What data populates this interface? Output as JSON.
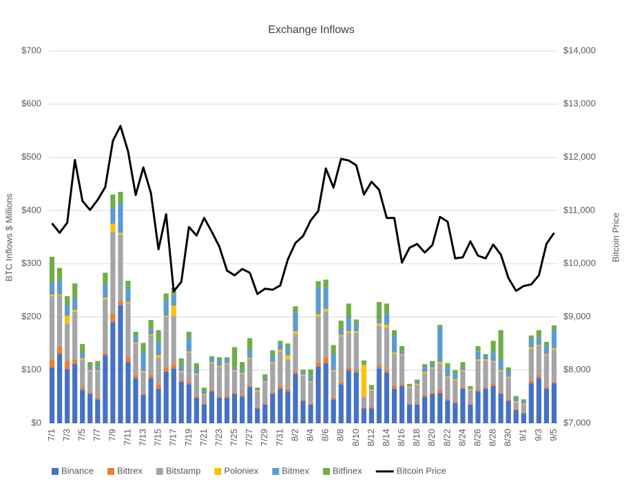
{
  "chart_data": {
    "type": "bar",
    "stacked": true,
    "title": "Exchange Inflows",
    "y_label": "BTC Inflows $ Millions",
    "y2_label": "Bitcoin Price",
    "categories": [
      "7/1",
      null,
      "7/3",
      null,
      "7/5",
      null,
      "7/7",
      null,
      "7/9",
      null,
      "7/11",
      null,
      "7/13",
      null,
      "7/15",
      null,
      "7/17",
      null,
      "7/19",
      null,
      "7/21",
      null,
      "7/23",
      null,
      "7/25",
      null,
      "7/27",
      null,
      "7/29",
      null,
      "7/31",
      null,
      "8/2",
      null,
      "8/4",
      null,
      "8/6",
      null,
      "8/8",
      null,
      "8/10",
      null,
      "8/12",
      null,
      "8/14",
      null,
      "8/16",
      null,
      "8/18",
      null,
      "8/20",
      null,
      "8/22",
      null,
      "8/24",
      null,
      "8/26",
      null,
      "8/28",
      null,
      "8/30",
      null,
      "9/1",
      null,
      "9/3",
      null,
      "9/5"
    ],
    "series": [
      {
        "name": "Binance",
        "color": "#4472c4",
        "values": [
          105,
          130,
          102,
          112,
          63,
          55,
          45,
          128,
          190,
          222,
          115,
          85,
          53,
          85,
          65,
          97,
          103,
          78,
          73,
          48,
          35,
          60,
          48,
          48,
          55,
          50,
          68,
          28,
          35,
          55,
          65,
          60,
          93,
          42,
          35,
          107,
          113,
          45,
          73,
          100,
          95,
          28,
          28,
          103,
          95,
          65,
          70,
          35,
          35,
          50,
          55,
          57,
          43,
          38,
          65,
          35,
          60,
          65,
          70,
          55,
          42,
          25,
          18,
          75,
          85,
          65,
          75
        ]
      },
      {
        "name": "Bittrex",
        "color": "#ed7d31",
        "values": [
          14,
          15,
          15,
          8,
          5,
          3,
          3,
          5,
          15,
          8,
          10,
          5,
          3,
          5,
          8,
          8,
          8,
          3,
          5,
          3,
          3,
          3,
          3,
          3,
          3,
          3,
          3,
          2,
          2,
          3,
          5,
          5,
          5,
          2,
          2,
          8,
          12,
          3,
          5,
          5,
          5,
          2,
          3,
          5,
          5,
          5,
          3,
          2,
          2,
          3,
          3,
          5,
          3,
          3,
          3,
          2,
          3,
          3,
          5,
          3,
          3,
          2,
          2,
          5,
          5,
          3,
          3
        ]
      },
      {
        "name": "Bitstamp",
        "color": "#a5a5a5",
        "values": [
          120,
          95,
          70,
          90,
          52,
          40,
          50,
          100,
          155,
          125,
          100,
          60,
          40,
          75,
          50,
          95,
          90,
          15,
          55,
          40,
          15,
          50,
          55,
          60,
          40,
          40,
          50,
          30,
          40,
          55,
          65,
          55,
          70,
          45,
          40,
          85,
          85,
          50,
          85,
          65,
          70,
          20,
          30,
          75,
          80,
          60,
          55,
          30,
          35,
          40,
          45,
          50,
          40,
          40,
          30,
          25,
          55,
          50,
          40,
          40,
          40,
          12,
          15,
          60,
          55,
          60,
          60
        ]
      },
      {
        "name": "Poloniex",
        "color": "#ffc000",
        "values": [
          3,
          2,
          15,
          3,
          2,
          2,
          2,
          3,
          15,
          3,
          3,
          2,
          2,
          2,
          5,
          2,
          20,
          2,
          2,
          2,
          2,
          2,
          2,
          2,
          2,
          2,
          2,
          2,
          2,
          2,
          3,
          8,
          5,
          2,
          2,
          5,
          5,
          2,
          3,
          3,
          3,
          60,
          2,
          5,
          5,
          3,
          2,
          2,
          2,
          3,
          2,
          3,
          2,
          2,
          2,
          2,
          2,
          2,
          2,
          2,
          2,
          2,
          2,
          3,
          2,
          2,
          3
        ]
      },
      {
        "name": "Bitmex",
        "color": "#5b9bd5",
        "values": [
          20,
          25,
          20,
          20,
          10,
          5,
          7,
          25,
          30,
          55,
          25,
          10,
          35,
          10,
          25,
          30,
          20,
          10,
          25,
          8,
          5,
          8,
          10,
          8,
          5,
          5,
          15,
          2,
          5,
          10,
          10,
          12,
          35,
          5,
          10,
          50,
          40,
          30,
          10,
          25,
          15,
          2,
          2,
          5,
          20,
          30,
          5,
          2,
          3,
          10,
          5,
          65,
          15,
          10,
          5,
          3,
          15,
          5,
          15,
          20,
          10,
          5,
          5,
          15,
          15,
          15,
          35
        ]
      },
      {
        "name": "Bitfinex",
        "color": "#70ad47",
        "values": [
          51,
          25,
          17,
          30,
          17,
          10,
          10,
          22,
          25,
          22,
          15,
          10,
          18,
          17,
          22,
          12,
          14,
          14,
          12,
          12,
          7,
          3,
          6,
          3,
          38,
          15,
          22,
          3,
          8,
          12,
          7,
          10,
          12,
          5,
          12,
          12,
          15,
          17,
          17,
          27,
          7,
          6,
          7,
          35,
          20,
          12,
          10,
          3,
          5,
          5,
          7,
          5,
          10,
          7,
          10,
          3,
          10,
          5,
          23,
          55,
          8,
          5,
          3,
          7,
          13,
          8,
          8
        ]
      },
      {
        "name": "Bitcoin Price",
        "color": "#000000",
        "type": "line",
        "axis": "y2",
        "values": [
          10760,
          10580,
          10770,
          11950,
          11180,
          11010,
          11200,
          11440,
          12310,
          12590,
          12110,
          11290,
          11810,
          11330,
          10270,
          10930,
          9480,
          9660,
          10690,
          10530,
          10860,
          10600,
          10320,
          9870,
          9780,
          9900,
          9830,
          9430,
          9530,
          9510,
          9590,
          10080,
          10390,
          10520,
          10810,
          10990,
          11790,
          11430,
          11970,
          11940,
          11850,
          11300,
          11540,
          11390,
          10860,
          10860,
          10020,
          10300,
          10370,
          10210,
          10350,
          10880,
          10790,
          10100,
          10120,
          10420,
          10150,
          10100,
          10360,
          10170,
          9730,
          9490,
          9580,
          9610,
          9780,
          10370,
          10580
        ]
      }
    ],
    "ylim": [
      0,
      700
    ],
    "yticks": [
      {
        "value": 0,
        "label": "$0"
      },
      {
        "value": 100,
        "label": "$100"
      },
      {
        "value": 200,
        "label": "$200"
      },
      {
        "value": 300,
        "label": "$300"
      },
      {
        "value": 400,
        "label": "$400"
      },
      {
        "value": 500,
        "label": "$500"
      },
      {
        "value": 600,
        "label": "$600"
      },
      {
        "value": 700,
        "label": "$700"
      }
    ],
    "y2lim": [
      7000,
      14000
    ],
    "y2ticks": [
      {
        "value": 7000,
        "label": "$7,000"
      },
      {
        "value": 8000,
        "label": "$8,000"
      },
      {
        "value": 9000,
        "label": "$9,000"
      },
      {
        "value": 10000,
        "label": "$10,000"
      },
      {
        "value": 11000,
        "label": "$11,000"
      },
      {
        "value": 12000,
        "label": "$12,000"
      },
      {
        "value": 13000,
        "label": "$13,000"
      },
      {
        "value": 14000,
        "label": "$14,000"
      }
    ],
    "grid": true,
    "legend": "bottom"
  }
}
